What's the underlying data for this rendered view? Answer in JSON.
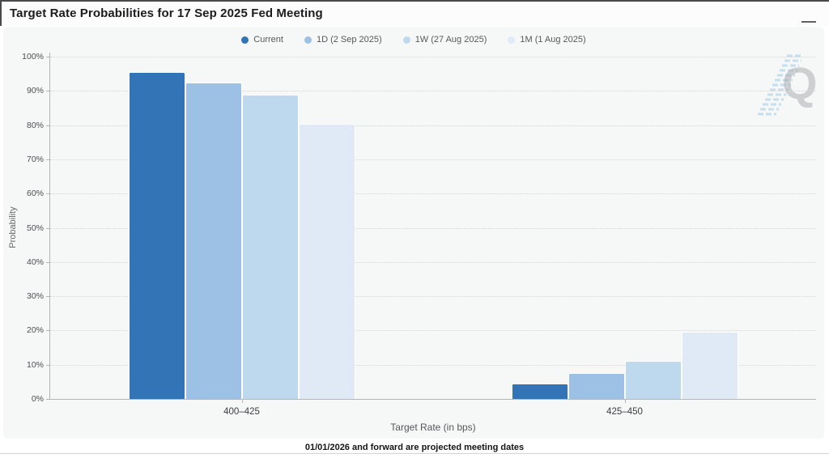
{
  "header": {
    "title": "Target Rate Probabilities for 17 Sep 2025 Fed Meeting"
  },
  "icons": {
    "menu": "hamburger-icon",
    "watermark": "quikstrike-q-logo"
  },
  "colors": {
    "accent_current": "#3274b6",
    "series_1d": "#9cc1e5",
    "series_1w": "#bed8ee",
    "series_1m": "#dfeaf6",
    "panel_background": "#f6f7f7",
    "watermark_stripe": "#b8d8ec"
  },
  "chart_data": {
    "type": "bar",
    "title": "Target Rate Probabilities for 17 Sep 2025 Fed Meeting",
    "categories": [
      "400–425",
      "425–450"
    ],
    "series": [
      {
        "name": "Current",
        "color": "#3274b6",
        "values": [
          95.6,
          4.4
        ]
      },
      {
        "name": "1D (2 Sep 2025)",
        "color": "#9cc1e5",
        "values": [
          92.5,
          7.5
        ]
      },
      {
        "name": "1W (27 Aug 2025)",
        "color": "#bed8ee",
        "values": [
          88.8,
          11.2
        ]
      },
      {
        "name": "1M (1 Aug 2025)",
        "color": "#dfeaf6",
        "values": [
          80.3,
          19.7
        ]
      }
    ],
    "xlabel": "Target Rate (in bps)",
    "ylabel": "Probability",
    "ylim": [
      0,
      100
    ],
    "ytick_step": 10,
    "ytick_labels": [
      "0%",
      "10%",
      "20%",
      "30%",
      "40%",
      "50%",
      "60%",
      "70%",
      "80%",
      "90%",
      "100%"
    ],
    "grid": "dotted-horizontal",
    "legend_position": "top-center"
  },
  "footer": {
    "note": "01/01/2026 and forward are projected meeting dates"
  }
}
